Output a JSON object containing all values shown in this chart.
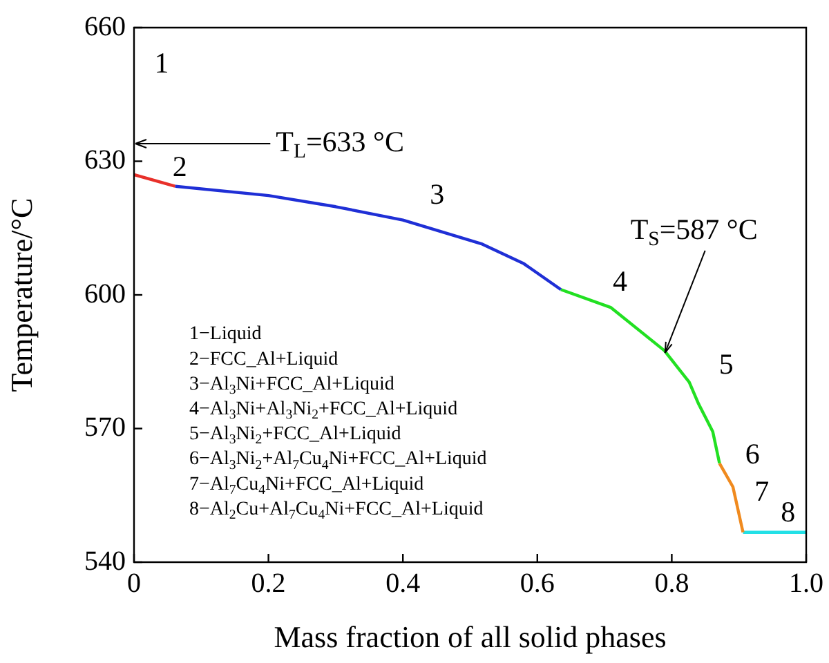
{
  "chart_data": {
    "type": "line",
    "xlabel": "Mass fraction of all solid phases",
    "ylabel": "Temperature/°C",
    "xlim": [
      0,
      1
    ],
    "ylim": [
      540,
      660
    ],
    "xticks": [
      0,
      0.2,
      0.4,
      0.6,
      0.8,
      {
        "value": 1,
        "label": "1.0"
      }
    ],
    "yticks": [
      540,
      570,
      600,
      630,
      660
    ],
    "grid": false,
    "legend": false,
    "marker": "none",
    "line_style": "solid",
    "series": [
      {
        "color": "#e8302a",
        "x": [
          0,
          0.061
        ],
        "values": [
          627,
          624.4
        ]
      },
      {
        "color": "#1f2fd6",
        "x": [
          0.061,
          0.2,
          0.3,
          0.4,
          0.518,
          0.58,
          0.635
        ],
        "values": [
          624.4,
          622.3,
          619.8,
          616.8,
          611.4,
          607,
          601.2
        ]
      },
      {
        "color": "#22e022",
        "x": [
          0.635,
          0.709,
          0.789,
          0.826,
          0.84,
          0.861,
          0.871
        ],
        "values": [
          601.2,
          597.2,
          587.5,
          580.4,
          575.5,
          569.3,
          562.2
        ]
      },
      {
        "color": "#f08a1e",
        "x": [
          0.871,
          0.891,
          0.906
        ],
        "values": [
          562.2,
          556.9,
          546.7
        ]
      },
      {
        "color": "#22e0e6",
        "x": [
          0.906,
          1
        ],
        "values": [
          546.7,
          546.7
        ]
      }
    ],
    "annotations": [
      "1",
      "2",
      "3",
      "4",
      "5",
      "6",
      "7",
      "8",
      "T$_{L}$=633 °C",
      {
        "text": "T$_{S}$=587 °C",
        "x": 0.79,
        "y": 587
      },
      "1−Liquid",
      "2−FCC_Al+Liquid",
      "3−Al$_{3}$Ni+FCC_Al+Liquid",
      "4−Al$_{3}$Ni+Al$_{3}$Ni$_{2}$+FCC_Al+Liquid",
      "5−Al$_{3}$Ni$_{2}$+FCC_Al+Liquid",
      "6−Al$_{3}$Ni$_{2}$+Al$_{7}$Cu$_{4}$Ni+FCC_Al+Liquid",
      "7−Al$_{7}$Cu$_{4}$Ni+FCC_Al+Liquid",
      "8−Al$_{2}$Cu+Al$_{7}$Cu$_{4}$Ni+FCC_Al+Liquid"
    ]
  }
}
